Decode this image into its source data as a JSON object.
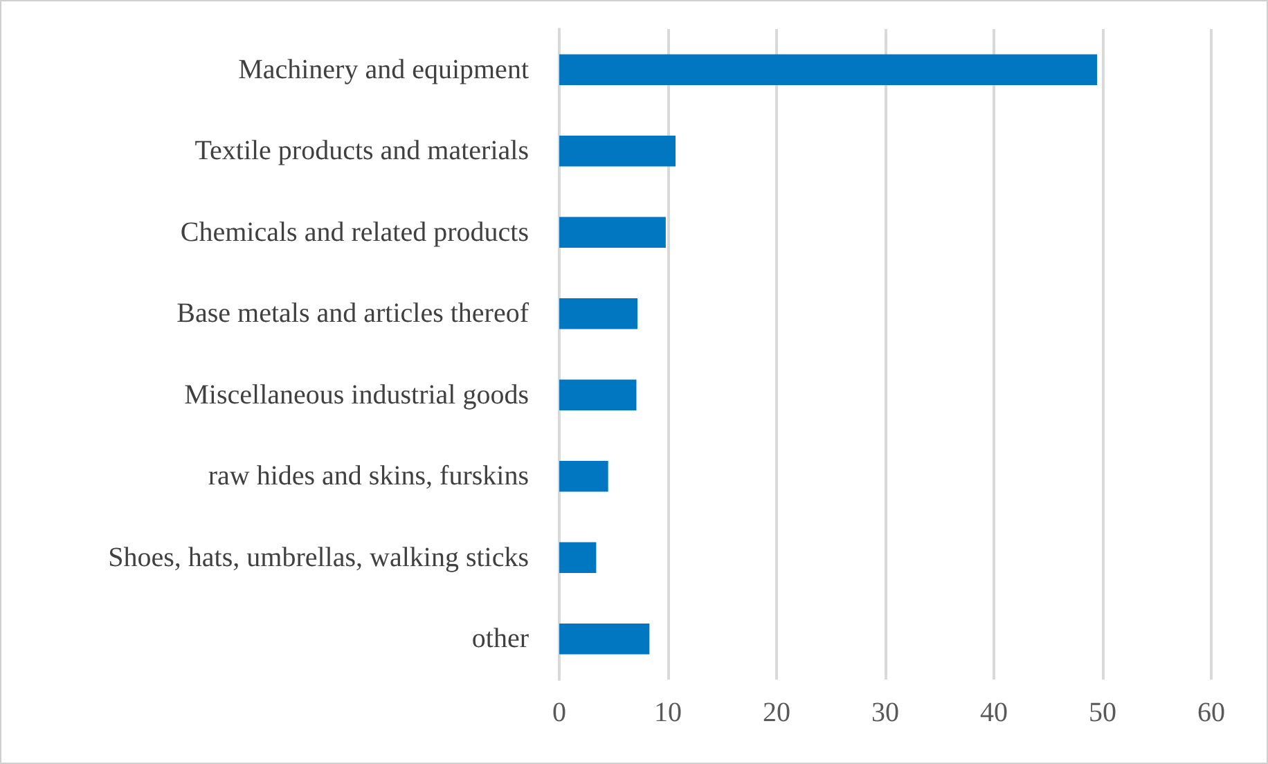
{
  "chart_data": {
    "type": "bar",
    "orientation": "horizontal",
    "categories": [
      "Machinery and equipment",
      "Textile products and materials",
      "Chemicals and related products",
      "Base metals and articles thereof",
      "Miscellaneous industrial goods",
      "raw hides and skins, furskins",
      "Shoes, hats, umbrellas, walking sticks",
      "other"
    ],
    "values": [
      49.5,
      10.7,
      9.8,
      7.2,
      7.1,
      4.5,
      3.4,
      8.3
    ],
    "color": "#0077c0",
    "xlim": [
      0,
      60
    ],
    "xticks": [
      0,
      10,
      20,
      30,
      40,
      50,
      60
    ],
    "grid": "x"
  }
}
